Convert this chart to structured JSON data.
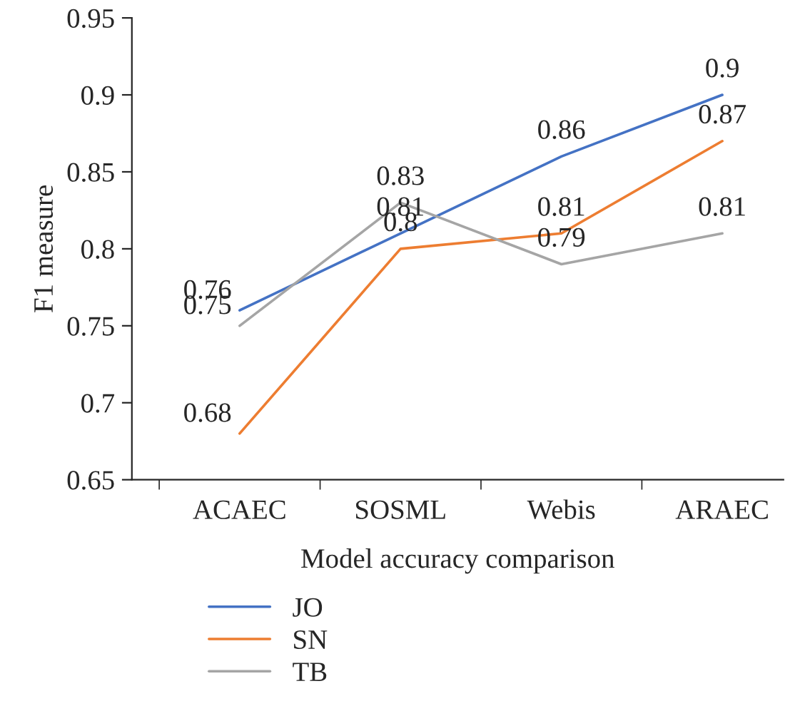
{
  "chart_data": {
    "type": "line",
    "xlabel": "Model accuracy comparison",
    "ylabel": "F1 measure",
    "categories": [
      "ACAEC",
      "SOSML",
      "Webis",
      "ARAEC"
    ],
    "series": [
      {
        "name": "JO",
        "color": "#4472c4",
        "values": [
          0.76,
          0.81,
          0.86,
          0.9
        ]
      },
      {
        "name": "SN",
        "color": "#ed7d31",
        "values": [
          0.68,
          0.8,
          0.81,
          0.87
        ]
      },
      {
        "name": "TB",
        "color": "#a5a5a5",
        "values": [
          0.75,
          0.83,
          0.79,
          0.81
        ]
      }
    ],
    "ylim": [
      0.65,
      0.95
    ],
    "yticks": [
      0.65,
      0.7,
      0.75,
      0.8,
      0.85,
      0.9,
      0.95
    ],
    "data_labels": true,
    "grid": false,
    "legend": "bottom left",
    "marker": "none",
    "line_style": "solid"
  }
}
